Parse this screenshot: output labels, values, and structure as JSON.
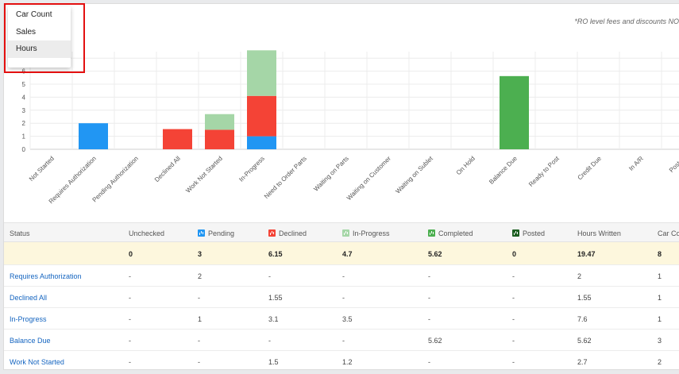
{
  "note": "*RO level fees and discounts NO",
  "menu": {
    "items": [
      {
        "label": "Car Count",
        "name": "menu-item-car-count",
        "selected": false
      },
      {
        "label": "Sales",
        "name": "menu-item-sales",
        "selected": false
      },
      {
        "label": "Hours",
        "name": "menu-item-hours",
        "selected": true
      }
    ]
  },
  "colors": {
    "pending": "#2196f3",
    "declined": "#f44336",
    "in_progress": "#a5d6a7",
    "completed": "#4caf50",
    "posted": "#1b5e20"
  },
  "chart_data": {
    "type": "bar",
    "stacked": true,
    "categories": [
      "Not Started",
      "Requires Authorization",
      "Pending Authorization",
      "Declined All",
      "Work Not Started",
      "In-Progress",
      "Need to Order Parts",
      "Waiting on Parts",
      "Waiting on Customer",
      "Waiting on Sublet",
      "On Hold",
      "Balance Due",
      "Ready to Post",
      "Credit Due",
      "In A/R",
      "Posted"
    ],
    "series": [
      {
        "name": "Pending",
        "color": "#2196f3",
        "values": [
          0,
          2,
          0,
          0,
          0,
          1,
          0,
          0,
          0,
          0,
          0,
          0,
          0,
          0,
          0,
          0
        ]
      },
      {
        "name": "Declined",
        "color": "#f44336",
        "values": [
          0,
          0,
          0,
          1.55,
          1.5,
          3.1,
          0,
          0,
          0,
          0,
          0,
          0,
          0,
          0,
          0,
          0
        ]
      },
      {
        "name": "In-Progress",
        "color": "#a5d6a7",
        "values": [
          0,
          0,
          0,
          0,
          1.2,
          3.5,
          0,
          0,
          0,
          0,
          0,
          0,
          0,
          0,
          0,
          0
        ]
      },
      {
        "name": "Completed",
        "color": "#4caf50",
        "values": [
          0,
          0,
          0,
          0,
          0,
          0,
          0,
          0,
          0,
          0,
          0,
          5.62,
          0,
          0,
          0,
          0
        ]
      }
    ],
    "y_ticks": [
      "0",
      "1",
      "2",
      "3",
      "4",
      "5",
      "6"
    ],
    "ylim": [
      0,
      7.5
    ],
    "grid": true
  },
  "table": {
    "headers": {
      "status": "Status",
      "unchecked": "Unchecked",
      "pending": "Pending",
      "declined": "Declined",
      "in_progress": "In-Progress",
      "completed": "Completed",
      "posted": "Posted",
      "hours_written": "Hours Written",
      "car_count": "Car Co"
    },
    "totals": {
      "status": "",
      "unchecked": "0",
      "pending": "3",
      "declined": "6.15",
      "in_progress": "4.7",
      "completed": "5.62",
      "posted": "0",
      "hours_written": "19.47",
      "car_count": "8"
    },
    "rows": [
      {
        "status": "Requires Authorization",
        "unchecked": "-",
        "pending": "2",
        "declined": "-",
        "in_progress": "-",
        "completed": "-",
        "posted": "-",
        "hours_written": "2",
        "car_count": "1"
      },
      {
        "status": "Declined All",
        "unchecked": "-",
        "pending": "-",
        "declined": "1.55",
        "in_progress": "-",
        "completed": "-",
        "posted": "-",
        "hours_written": "1.55",
        "car_count": "1"
      },
      {
        "status": "In-Progress",
        "unchecked": "-",
        "pending": "1",
        "declined": "3.1",
        "in_progress": "3.5",
        "completed": "-",
        "posted": "-",
        "hours_written": "7.6",
        "car_count": "1"
      },
      {
        "status": "Balance Due",
        "unchecked": "-",
        "pending": "-",
        "declined": "-",
        "in_progress": "-",
        "completed": "5.62",
        "posted": "-",
        "hours_written": "5.62",
        "car_count": "3"
      },
      {
        "status": "Work Not Started",
        "unchecked": "-",
        "pending": "-",
        "declined": "1.5",
        "in_progress": "1.2",
        "completed": "-",
        "posted": "-",
        "hours_written": "2.7",
        "car_count": "2"
      }
    ]
  }
}
